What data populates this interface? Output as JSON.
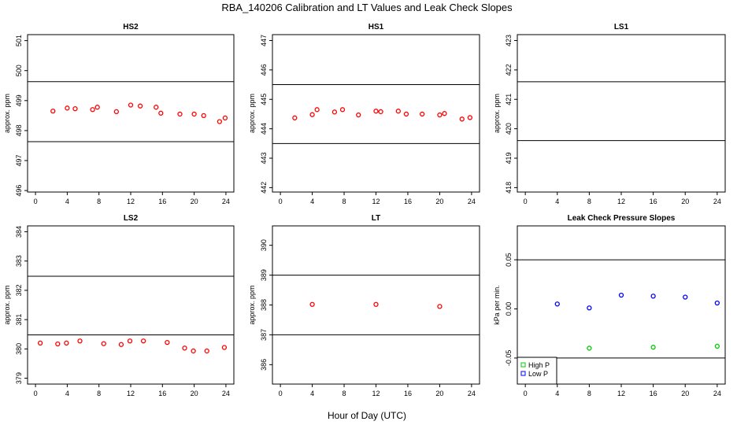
{
  "figure_title": "RBA_140206  Calibration and LT Values and Leak Check Slopes",
  "x_axis_label": "Hour of Day (UTC)",
  "chart_data": [
    {
      "id": "hs2",
      "type": "scatter",
      "title": "HS2",
      "ylabel": "approx. ppm",
      "xlim": [
        -1,
        25
      ],
      "ylim": [
        495.95,
        501.2
      ],
      "xticks": [
        0,
        4,
        8,
        12,
        16,
        20,
        24
      ],
      "yticks": [
        496,
        497,
        498,
        499,
        500,
        501
      ],
      "hlines": [
        497.63,
        499.63
      ],
      "series": [
        {
          "name": "HS2",
          "color": "#ff0000",
          "x": [
            2.2,
            4,
            5,
            7.2,
            7.8,
            10.2,
            12,
            13.2,
            15.2,
            15.8,
            18.2,
            20,
            21.2,
            23.2,
            23.9
          ],
          "y": [
            498.65,
            498.75,
            498.73,
            498.7,
            498.78,
            498.63,
            498.85,
            498.82,
            498.78,
            498.58,
            498.55,
            498.55,
            498.5,
            498.3,
            498.42
          ]
        }
      ]
    },
    {
      "id": "hs1",
      "type": "scatter",
      "title": "HS1",
      "ylabel": "approx. ppm",
      "xlim": [
        -1,
        25
      ],
      "ylim": [
        441.85,
        447.2
      ],
      "xticks": [
        0,
        4,
        8,
        12,
        16,
        20,
        24
      ],
      "yticks": [
        442,
        443,
        444,
        445,
        446,
        447
      ],
      "hlines": [
        443.5,
        445.5
      ],
      "series": [
        {
          "name": "HS1",
          "color": "#ff0000",
          "x": [
            1.8,
            4,
            4.6,
            6.8,
            7.8,
            9.8,
            12,
            12.6,
            14.8,
            15.8,
            17.8,
            20,
            20.6,
            22.8,
            23.8
          ],
          "y": [
            444.37,
            444.48,
            444.65,
            444.57,
            444.65,
            444.47,
            444.6,
            444.58,
            444.6,
            444.5,
            444.5,
            444.47,
            444.52,
            444.33,
            444.38
          ]
        }
      ]
    },
    {
      "id": "ls1",
      "type": "scatter",
      "title": "LS1",
      "ylabel": "approx. ppm",
      "xlim": [
        -1,
        25
      ],
      "ylim": [
        417.85,
        423.2
      ],
      "xticks": [
        0,
        4,
        8,
        12,
        16,
        20,
        24
      ],
      "yticks": [
        418,
        419,
        420,
        421,
        422,
        423
      ],
      "hlines": [
        419.6,
        421.6
      ],
      "series": []
    },
    {
      "id": "ls2",
      "type": "scatter",
      "title": "LS2",
      "ylabel": "approx. ppm",
      "xlim": [
        -1,
        25
      ],
      "ylim": [
        378.8,
        384.2
      ],
      "xticks": [
        0,
        4,
        8,
        12,
        16,
        20,
        24
      ],
      "yticks": [
        379,
        380,
        381,
        382,
        383,
        384
      ],
      "hlines": [
        380.48,
        382.48
      ],
      "series": [
        {
          "name": "LS2",
          "color": "#ff0000",
          "x": [
            0.6,
            2.8,
            3.9,
            5.6,
            8.6,
            10.8,
            11.9,
            13.6,
            16.6,
            18.8,
            19.9,
            21.6,
            23.8
          ],
          "y": [
            380.2,
            380.17,
            380.2,
            380.27,
            380.18,
            380.15,
            380.27,
            380.27,
            380.22,
            380.03,
            379.93,
            379.93,
            380.05
          ]
        }
      ]
    },
    {
      "id": "lt",
      "type": "scatter",
      "title": "LT",
      "ylabel": "approx. ppm",
      "xlim": [
        -1,
        25
      ],
      "ylim": [
        385.35,
        390.65
      ],
      "xticks": [
        0,
        4,
        8,
        12,
        16,
        20,
        24
      ],
      "yticks": [
        386,
        387,
        388,
        389,
        390
      ],
      "hlines": [
        387,
        389
      ],
      "series": [
        {
          "name": "LT",
          "color": "#ff0000",
          "x": [
            4,
            12,
            20
          ],
          "y": [
            388.02,
            388.02,
            387.95
          ]
        }
      ]
    },
    {
      "id": "leak",
      "type": "scatter",
      "title": "Leak Check Pressure Slopes",
      "ylabel": "kPa per min.",
      "xlim": [
        -1,
        25
      ],
      "ylim": [
        -0.0765,
        0.0845
      ],
      "xticks": [
        0,
        4,
        8,
        12,
        16,
        20,
        24
      ],
      "yticks": [
        -0.05,
        0.0,
        0.05
      ],
      "ytick_labels": [
        "-0.05",
        "0.00",
        "0.05"
      ],
      "hlines": [
        -0.05,
        0.05
      ],
      "legend": {
        "position": "bottom-left",
        "entries": [
          "High P",
          "Low P"
        ]
      },
      "series": [
        {
          "name": "High P",
          "color": "#00cc00",
          "x": [
            8,
            16,
            24
          ],
          "y": [
            -0.04,
            -0.039,
            -0.038
          ]
        },
        {
          "name": "Low P",
          "color": "#0000ff",
          "x": [
            4,
            8,
            12,
            16,
            20,
            24
          ],
          "y": [
            0.005,
            0.001,
            0.014,
            0.013,
            0.012,
            0.006
          ]
        }
      ]
    }
  ]
}
